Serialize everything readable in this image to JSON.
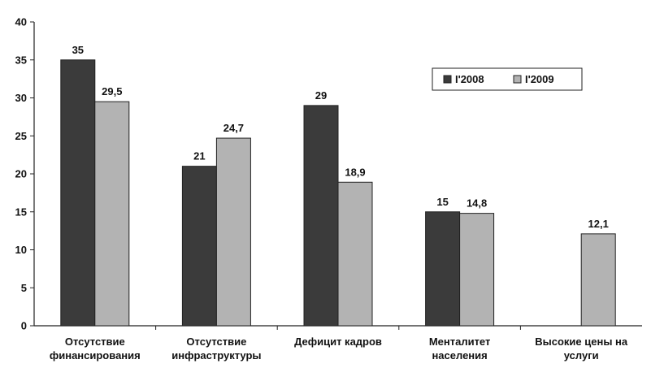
{
  "chart_data": {
    "type": "bar",
    "title": "",
    "xlabel": "",
    "ylabel": "",
    "ylim": [
      0,
      40
    ],
    "yticks": [
      "0",
      "5",
      "10",
      "15",
      "20",
      "25",
      "30",
      "35",
      "40"
    ],
    "grid": false,
    "legend_position": "top-right",
    "categories": [
      [
        "Отсутствие",
        "финансирования"
      ],
      [
        "Отсутствие",
        "инфраструктуры"
      ],
      [
        "Дефицит кадров"
      ],
      [
        "Менталитет",
        "населения"
      ],
      [
        "Высокие цены на",
        "услуги"
      ]
    ],
    "series": [
      {
        "name": "I'2008",
        "color": "#3b3b3b",
        "values": [
          35,
          21,
          29,
          15,
          null
        ],
        "labels": [
          "35",
          "21",
          "29",
          "15",
          ""
        ]
      },
      {
        "name": "I'2009",
        "color": "#b3b3b3",
        "values": [
          29.5,
          24.7,
          18.9,
          14.8,
          12.1
        ],
        "labels": [
          "29,5",
          "24,7",
          "18,9",
          "14,8",
          "12,1"
        ]
      }
    ]
  }
}
